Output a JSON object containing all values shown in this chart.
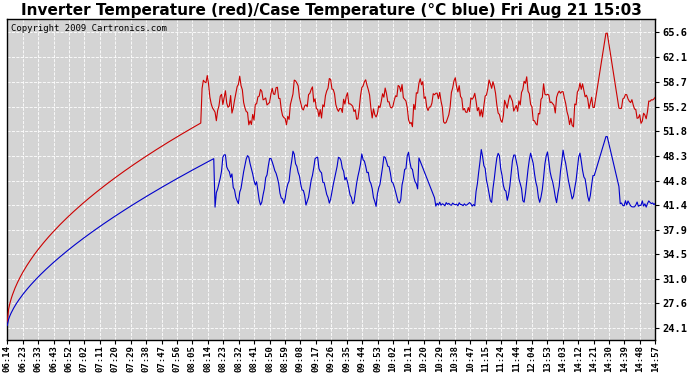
{
  "title": "Inverter Temperature (red)/Case Temperature (°C blue) Fri Aug 21 15:03",
  "copyright": "Copyright 2009 Cartronics.com",
  "yticks": [
    24.1,
    27.6,
    31.0,
    34.5,
    37.9,
    41.4,
    44.8,
    48.3,
    51.8,
    55.2,
    58.7,
    62.1,
    65.6
  ],
  "ylim": [
    22.5,
    67.5
  ],
  "xtick_labels": [
    "06:14",
    "06:23",
    "06:33",
    "06:43",
    "06:52",
    "07:02",
    "07:11",
    "07:20",
    "07:29",
    "07:38",
    "07:47",
    "07:56",
    "08:05",
    "08:14",
    "08:23",
    "08:32",
    "08:41",
    "08:50",
    "08:59",
    "09:08",
    "09:17",
    "09:26",
    "09:35",
    "09:44",
    "09:53",
    "10:02",
    "10:11",
    "10:20",
    "10:29",
    "10:38",
    "10:47",
    "11:15",
    "11:24",
    "11:44",
    "12:04",
    "13:53",
    "14:03",
    "14:12",
    "14:21",
    "14:30",
    "14:39",
    "14:48",
    "14:57"
  ],
  "red_color": "#cc0000",
  "blue_color": "#0000cc",
  "bg_color": "#ffffff",
  "plot_bg_color": "#d4d4d4",
  "grid_color": "#ffffff",
  "title_fontsize": 11,
  "copyright_fontsize": 6.5,
  "tick_fontsize": 6.5,
  "ytick_fontsize": 7.5
}
